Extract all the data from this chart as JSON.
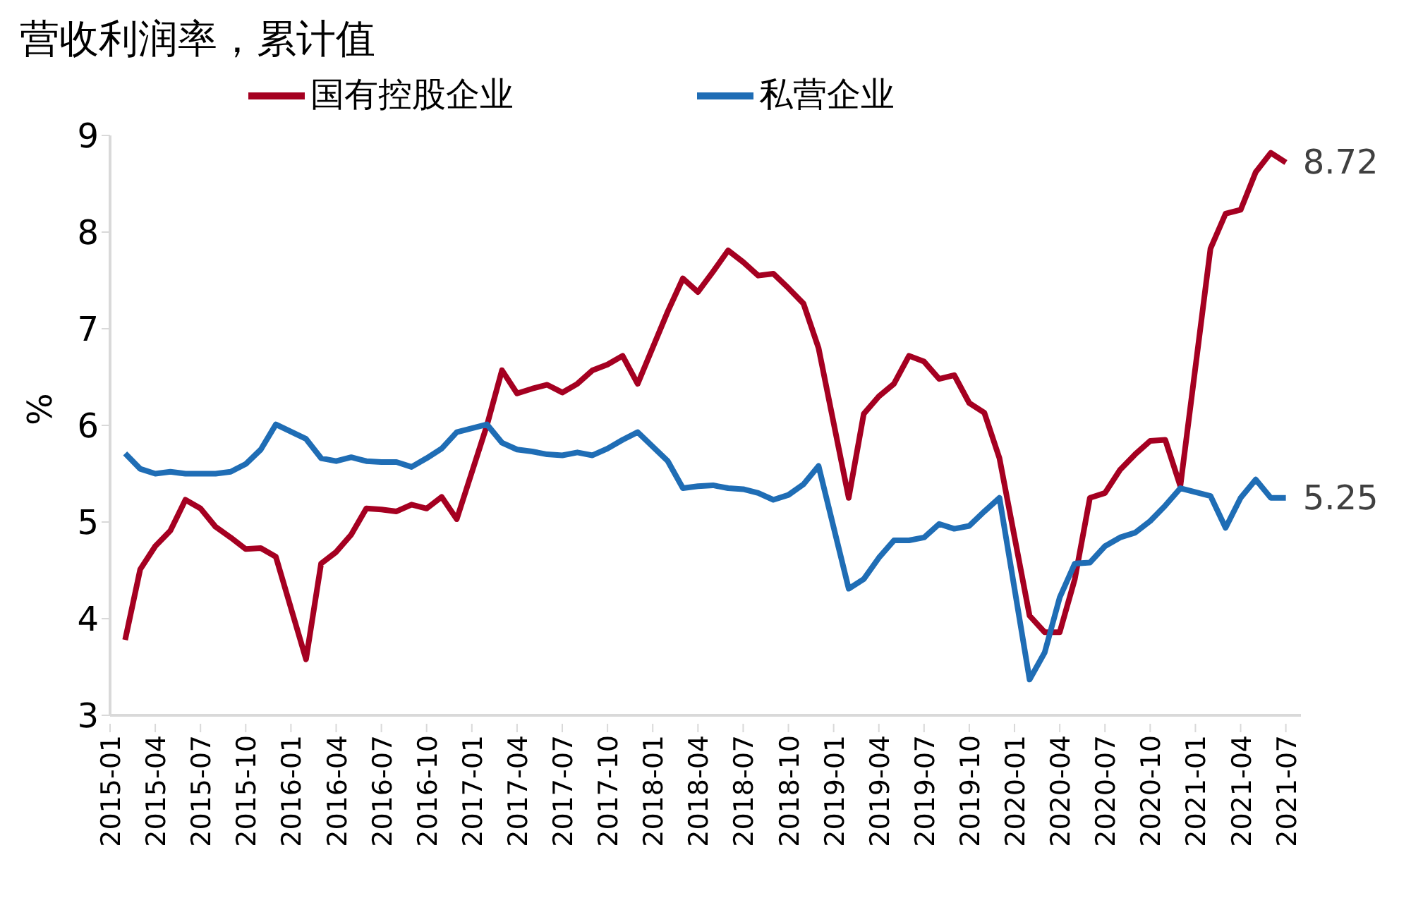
{
  "chart_data": {
    "type": "line",
    "title": "营收利润率，累计值",
    "ylabel": "%",
    "categories": [
      "2015-01",
      null,
      null,
      "2015-04",
      null,
      null,
      "2015-07",
      null,
      null,
      "2015-10",
      null,
      null,
      "2016-01",
      null,
      null,
      "2016-04",
      null,
      null,
      "2016-07",
      null,
      null,
      "2016-10",
      null,
      null,
      "2017-01",
      null,
      null,
      "2017-04",
      null,
      null,
      "2017-07",
      null,
      null,
      "2017-10",
      null,
      null,
      "2018-01",
      null,
      null,
      "2018-04",
      null,
      null,
      "2018-07",
      null,
      null,
      "2018-10",
      null,
      null,
      "2019-01",
      null,
      null,
      "2019-04",
      null,
      null,
      "2019-07",
      null,
      null,
      "2019-10",
      null,
      null,
      "2020-01",
      null,
      null,
      "2020-04",
      null,
      null,
      "2020-07",
      null,
      null,
      "2020-10",
      null,
      null,
      "2021-01",
      null,
      null,
      "2021-04",
      null,
      null,
      "2021-07",
      null
    ],
    "series": [
      {
        "name": "国有控股企业",
        "color": "#a50021",
        "values": [
          null,
          3.78,
          4.51,
          4.75,
          4.91,
          5.23,
          5.14,
          4.95,
          4.84,
          4.72,
          4.73,
          4.64,
          null,
          3.58,
          4.57,
          4.69,
          4.87,
          5.14,
          5.13,
          5.11,
          5.18,
          5.14,
          5.26,
          5.03,
          null,
          6.0,
          6.57,
          6.33,
          6.38,
          6.42,
          6.34,
          6.43,
          6.57,
          6.63,
          6.72,
          6.43,
          null,
          7.18,
          7.52,
          7.38,
          7.59,
          7.81,
          7.69,
          7.55,
          7.57,
          7.42,
          7.26,
          6.8,
          null,
          5.25,
          6.12,
          6.3,
          6.43,
          6.72,
          6.66,
          6.48,
          6.52,
          6.23,
          6.13,
          5.66,
          null,
          4.03,
          3.86,
          3.86,
          4.41,
          5.25,
          5.3,
          5.54,
          5.7,
          5.84,
          5.85,
          5.37,
          null,
          7.83,
          8.19,
          8.23,
          8.62,
          8.82,
          8.72,
          null
        ],
        "value_labels": [
          null,
          null,
          null,
          null,
          null,
          null,
          null,
          null,
          null,
          null,
          null,
          null,
          null,
          null,
          null,
          null,
          null,
          null,
          null,
          null,
          null,
          null,
          null,
          null,
          null,
          null,
          null,
          null,
          null,
          null,
          null,
          null,
          null,
          null,
          null,
          null,
          null,
          null,
          null,
          null,
          null,
          null,
          null,
          null,
          null,
          null,
          null,
          null,
          null,
          null,
          null,
          null,
          null,
          null,
          null,
          null,
          null,
          null,
          null,
          null,
          null,
          null,
          null,
          null,
          null,
          null,
          null,
          null,
          null,
          null,
          null,
          null,
          null,
          null,
          null,
          null,
          null,
          null,
          "8.72",
          null
        ]
      },
      {
        "name": "私营企业",
        "color": "#1f6db5",
        "values": [
          null,
          5.71,
          5.55,
          5.5,
          5.52,
          5.5,
          5.5,
          5.5,
          5.52,
          5.6,
          5.75,
          6.01,
          null,
          5.86,
          5.66,
          5.63,
          5.67,
          5.63,
          5.62,
          5.62,
          5.57,
          5.66,
          5.76,
          5.93,
          null,
          6.01,
          5.82,
          5.75,
          5.73,
          5.7,
          5.69,
          5.72,
          5.69,
          5.76,
          5.85,
          5.93,
          null,
          5.63,
          5.35,
          5.37,
          5.38,
          5.35,
          5.34,
          5.3,
          5.23,
          5.28,
          5.39,
          5.58,
          null,
          4.31,
          4.41,
          4.63,
          4.81,
          4.81,
          4.84,
          4.98,
          4.93,
          4.96,
          5.11,
          5.25,
          null,
          3.37,
          3.65,
          4.22,
          4.57,
          4.58,
          4.75,
          4.84,
          4.89,
          5.01,
          5.17,
          5.35,
          null,
          5.27,
          4.94,
          5.25,
          5.44,
          5.25,
          5.25,
          null
        ],
        "value_labels": [
          null,
          null,
          null,
          null,
          null,
          null,
          null,
          null,
          null,
          null,
          null,
          null,
          null,
          null,
          null,
          null,
          null,
          null,
          null,
          null,
          null,
          null,
          null,
          null,
          null,
          null,
          null,
          null,
          null,
          null,
          null,
          null,
          null,
          null,
          null,
          null,
          null,
          null,
          null,
          null,
          null,
          null,
          null,
          null,
          null,
          null,
          null,
          null,
          null,
          null,
          null,
          null,
          null,
          null,
          null,
          null,
          null,
          null,
          null,
          null,
          null,
          null,
          null,
          null,
          null,
          null,
          null,
          null,
          null,
          null,
          null,
          null,
          null,
          null,
          null,
          null,
          null,
          null,
          "5.25",
          null
        ]
      }
    ],
    "ylim": [
      3,
      9
    ],
    "yticks": [
      3,
      4,
      5,
      6,
      7,
      8,
      9
    ],
    "legend": "top"
  }
}
